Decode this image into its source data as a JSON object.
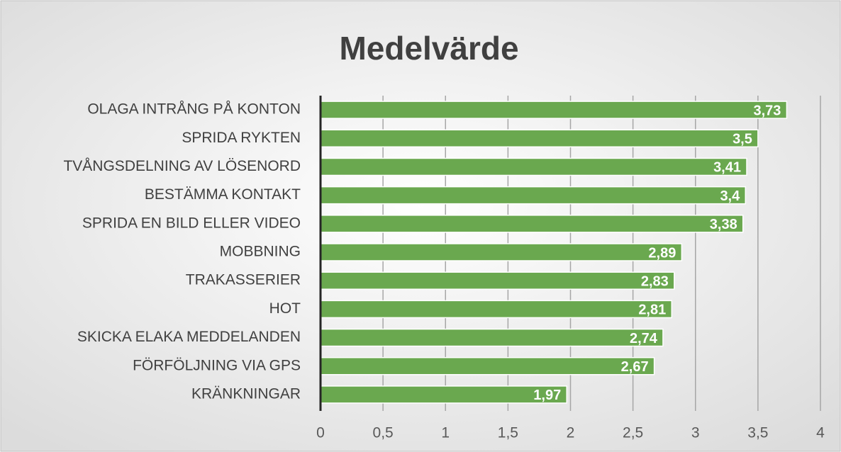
{
  "chart_data": {
    "type": "hbar",
    "title": "Medelvärde",
    "categories": [
      "OLAGA INTRÅNG PÅ KONTON",
      "SPRIDA RYKTEN",
      "TVÅNGSDELNING AV LÖSENORD",
      "BESTÄMMA KONTAKT",
      "SPRIDA EN BILD ELLER VIDEO",
      "MOBBNING",
      "TRAKASSERIER",
      "HOT",
      "SKICKA ELAKA MEDDELANDEN",
      "FÖRFÖLJNING VIA GPS",
      "KRÄNKNINGAR"
    ],
    "values": [
      3.73,
      3.5,
      3.41,
      3.4,
      3.38,
      2.89,
      2.83,
      2.81,
      2.74,
      2.67,
      1.97
    ],
    "value_labels": [
      "3,73",
      "3,5",
      "3,41",
      "3,4",
      "3,38",
      "2,89",
      "2,83",
      "2,81",
      "2,74",
      "2,67",
      "1,97"
    ],
    "color": "#6aa84f",
    "xlim": [
      0,
      4
    ],
    "xticks": [
      0,
      {
        "value": 0.5,
        "label": "0,5"
      },
      1,
      {
        "value": 1.5,
        "label": "1,5"
      },
      2,
      {
        "value": 2.5,
        "label": "2,5"
      },
      3,
      {
        "value": 3.5,
        "label": "3,5"
      },
      4
    ],
    "grid": true
  }
}
